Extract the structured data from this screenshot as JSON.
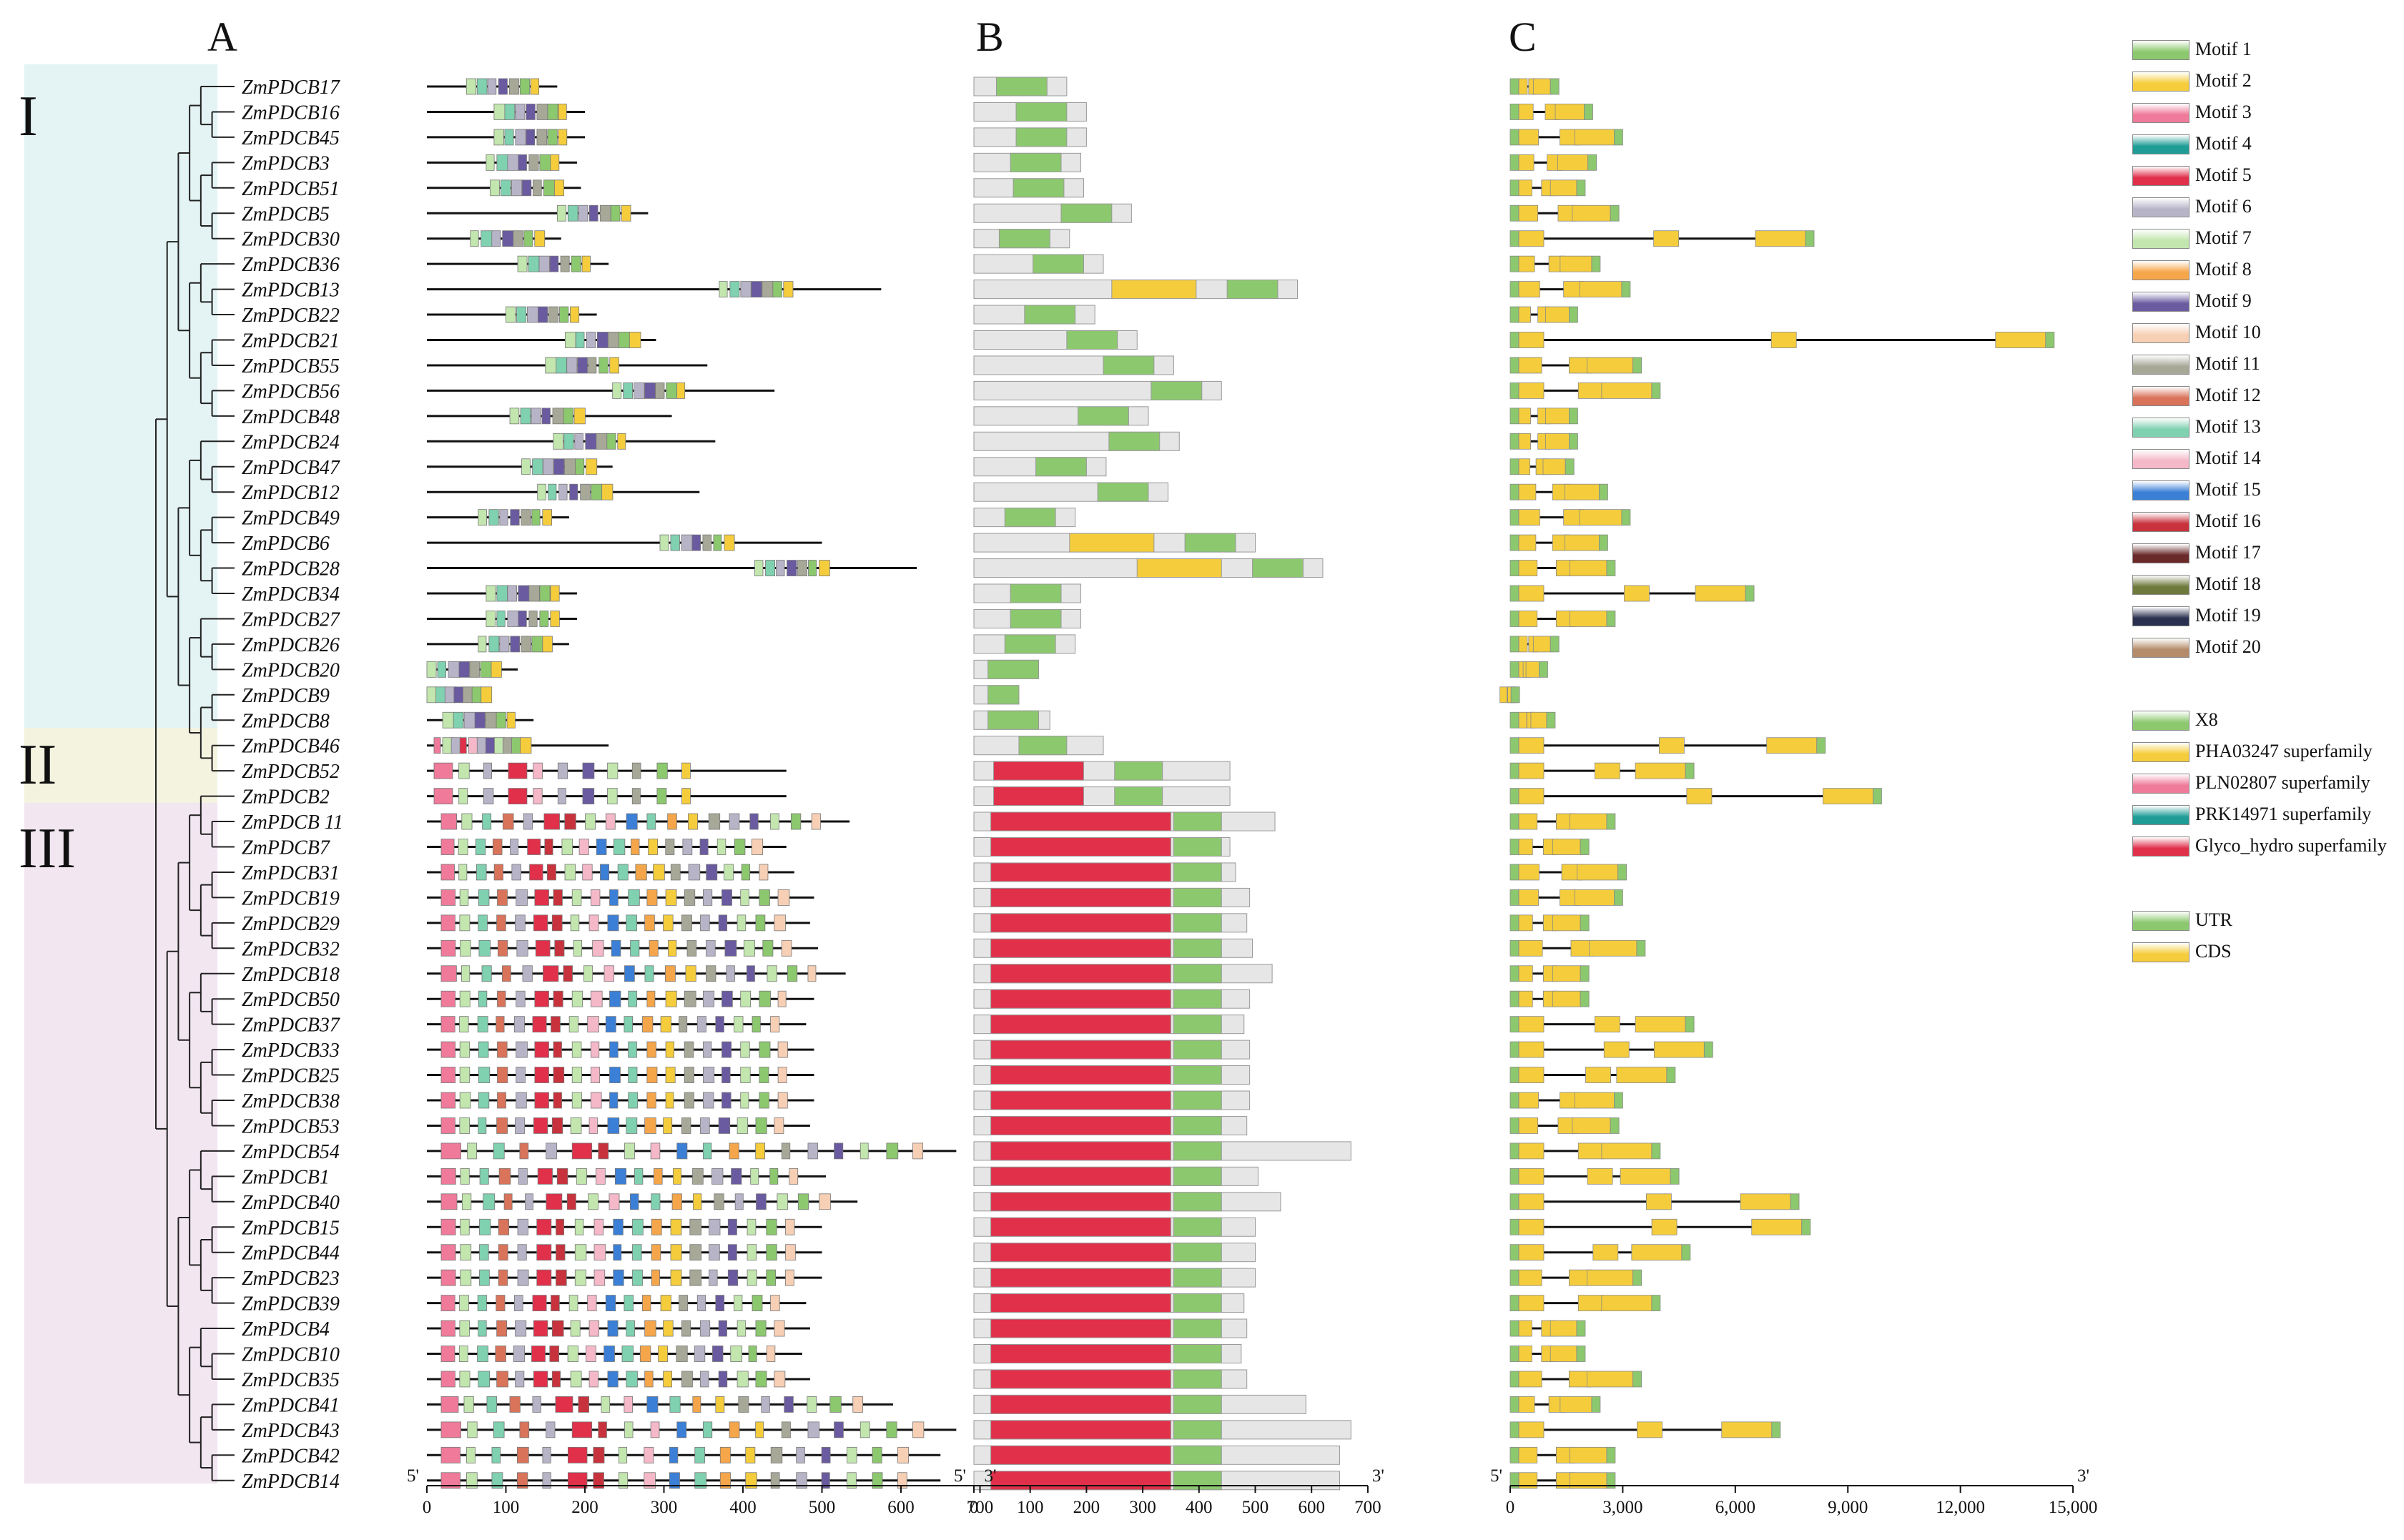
{
  "panels": {
    "a": "A",
    "b": "B",
    "c": "C"
  },
  "clades": [
    {
      "label": "I",
      "color": "#e4f3f3"
    },
    {
      "label": "II",
      "color": "#f3f3e0"
    },
    {
      "label": "III",
      "color": "#f2e6f1"
    }
  ],
  "genes": [
    {
      "name": "ZmPDCB17",
      "clade": 0,
      "len": 165,
      "glen": 1300
    },
    {
      "name": "ZmPDCB16",
      "clade": 0,
      "len": 200,
      "glen": 2200
    },
    {
      "name": "ZmPDCB45",
      "clade": 0,
      "len": 200,
      "glen": 3000
    },
    {
      "name": "ZmPDCB3",
      "clade": 0,
      "len": 190,
      "glen": 2300
    },
    {
      "name": "ZmPDCB51",
      "clade": 0,
      "len": 195,
      "glen": 2000
    },
    {
      "name": "ZmPDCB5",
      "clade": 0,
      "len": 280,
      "glen": 2900
    },
    {
      "name": "ZmPDCB30",
      "clade": 0,
      "len": 170,
      "glen": 8100
    },
    {
      "name": "ZmPDCB36",
      "clade": 0,
      "len": 230,
      "glen": 2400
    },
    {
      "name": "ZmPDCB13",
      "clade": 0,
      "len": 575,
      "glen": 3200
    },
    {
      "name": "ZmPDCB22",
      "clade": 0,
      "len": 215,
      "glen": 1800
    },
    {
      "name": "ZmPDCB21",
      "clade": 0,
      "len": 290,
      "glen": 14500
    },
    {
      "name": "ZmPDCB55",
      "clade": 0,
      "len": 355,
      "glen": 3500
    },
    {
      "name": "ZmPDCB56",
      "clade": 0,
      "len": 440,
      "glen": 4000
    },
    {
      "name": "ZmPDCB48",
      "clade": 0,
      "len": 310,
      "glen": 1800
    },
    {
      "name": "ZmPDCB24",
      "clade": 0,
      "len": 365,
      "glen": 1800
    },
    {
      "name": "ZmPDCB47",
      "clade": 0,
      "len": 235,
      "glen": 1700
    },
    {
      "name": "ZmPDCB12",
      "clade": 0,
      "len": 345,
      "glen": 2600
    },
    {
      "name": "ZmPDCB49",
      "clade": 0,
      "len": 180,
      "glen": 3200
    },
    {
      "name": "ZmPDCB6",
      "clade": 0,
      "len": 500,
      "glen": 2600
    },
    {
      "name": "ZmPDCB28",
      "clade": 0,
      "len": 620,
      "glen": 2800
    },
    {
      "name": "ZmPDCB34",
      "clade": 0,
      "len": 190,
      "glen": 6500
    },
    {
      "name": "ZmPDCB27",
      "clade": 0,
      "len": 190,
      "glen": 2800
    },
    {
      "name": "ZmPDCB26",
      "clade": 0,
      "len": 180,
      "glen": 1300
    },
    {
      "name": "ZmPDCB20",
      "clade": 0,
      "len": 115,
      "glen": 1000
    },
    {
      "name": "ZmPDCB9",
      "clade": 0,
      "len": 80,
      "glen": 250
    },
    {
      "name": "ZmPDCB8",
      "clade": 0,
      "len": 135,
      "glen": 1200
    },
    {
      "name": "ZmPDCB46",
      "clade": 1,
      "len": 230,
      "glen": 8400
    },
    {
      "name": "ZmPDCB52",
      "clade": 1,
      "len": 455,
      "glen": 4900
    },
    {
      "name": "ZmPDCB2",
      "clade": 1,
      "len": 455,
      "glen": 9900
    },
    {
      "name": "ZmPDCB 11",
      "clade": 2,
      "len": 535,
      "glen": 2800
    },
    {
      "name": "ZmPDCB7",
      "clade": 2,
      "len": 455,
      "glen": 2100
    },
    {
      "name": "ZmPDCB31",
      "clade": 2,
      "len": 465,
      "glen": 3100
    },
    {
      "name": "ZmPDCB19",
      "clade": 2,
      "len": 490,
      "glen": 3000
    },
    {
      "name": "ZmPDCB29",
      "clade": 2,
      "len": 485,
      "glen": 2100
    },
    {
      "name": "ZmPDCB32",
      "clade": 2,
      "len": 495,
      "glen": 3600
    },
    {
      "name": "ZmPDCB18",
      "clade": 2,
      "len": 530,
      "glen": 2100
    },
    {
      "name": "ZmPDCB50",
      "clade": 2,
      "len": 490,
      "glen": 2100
    },
    {
      "name": "ZmPDCB37",
      "clade": 2,
      "len": 480,
      "glen": 4900
    },
    {
      "name": "ZmPDCB33",
      "clade": 2,
      "len": 490,
      "glen": 5400
    },
    {
      "name": "ZmPDCB25",
      "clade": 2,
      "len": 490,
      "glen": 4400
    },
    {
      "name": "ZmPDCB38",
      "clade": 2,
      "len": 490,
      "glen": 3000
    },
    {
      "name": "ZmPDCB53",
      "clade": 2,
      "len": 485,
      "glen": 2900
    },
    {
      "name": "ZmPDCB54",
      "clade": 2,
      "len": 670,
      "glen": 4000
    },
    {
      "name": "ZmPDCB1",
      "clade": 2,
      "len": 505,
      "glen": 4500
    },
    {
      "name": "ZmPDCB40",
      "clade": 2,
      "len": 545,
      "glen": 7700
    },
    {
      "name": "ZmPDCB15",
      "clade": 2,
      "len": 500,
      "glen": 8000
    },
    {
      "name": "ZmPDCB44",
      "clade": 2,
      "len": 500,
      "glen": 4800
    },
    {
      "name": "ZmPDCB23",
      "clade": 2,
      "len": 500,
      "glen": 3500
    },
    {
      "name": "ZmPDCB39",
      "clade": 2,
      "len": 480,
      "glen": 4000
    },
    {
      "name": "ZmPDCB4",
      "clade": 2,
      "len": 485,
      "glen": 2000
    },
    {
      "name": "ZmPDCB10",
      "clade": 2,
      "len": 475,
      "glen": 2000
    },
    {
      "name": "ZmPDCB35",
      "clade": 2,
      "len": 485,
      "glen": 3500
    },
    {
      "name": "ZmPDCB41",
      "clade": 2,
      "len": 590,
      "glen": 2400
    },
    {
      "name": "ZmPDCB43",
      "clade": 2,
      "len": 670,
      "glen": 7200
    },
    {
      "name": "ZmPDCB42",
      "clade": 2,
      "len": 650,
      "glen": 2800
    },
    {
      "name": "ZmPDCB14",
      "clade": 2,
      "len": 650,
      "glen": 2800
    }
  ],
  "axes": {
    "a": {
      "ticks": [
        "0",
        "100",
        "200",
        "300",
        "400",
        "500",
        "600",
        "700"
      ],
      "max": 700,
      "left_end": "5'",
      "right_end": "3'"
    },
    "b": {
      "ticks": [
        "0",
        "100",
        "200",
        "300",
        "400",
        "500",
        "600",
        "700"
      ],
      "max": 700,
      "left_end": "5'",
      "right_end": "3'"
    },
    "c": {
      "ticks": [
        "0",
        "3,000",
        "6,000",
        "9,000",
        "12,000",
        "15,000"
      ],
      "max": 15000,
      "left_end": "5'",
      "right_end": "3'"
    }
  },
  "legend": {
    "motifs": [
      {
        "label": "Motif 1",
        "color": "#8cc86e"
      },
      {
        "label": "Motif 2",
        "color": "#f5cd3c"
      },
      {
        "label": "Motif 3",
        "color": "#ef7a9a"
      },
      {
        "label": "Motif 4",
        "color": "#1f9c96"
      },
      {
        "label": "Motif 5",
        "color": "#e0304a"
      },
      {
        "label": "Motif 6",
        "color": "#b8b4c8"
      },
      {
        "label": "Motif 7",
        "color": "#c2e6ae"
      },
      {
        "label": "Motif 8",
        "color": "#f5a64a"
      },
      {
        "label": "Motif 9",
        "color": "#6a5aa0"
      },
      {
        "label": "Motif 10",
        "color": "#f7cfb4"
      },
      {
        "label": "Motif 11",
        "color": "#a8a898"
      },
      {
        "label": "Motif 12",
        "color": "#d9735a"
      },
      {
        "label": "Motif 13",
        "color": "#7fd1b0"
      },
      {
        "label": "Motif 14",
        "color": "#f4b8c8"
      },
      {
        "label": "Motif 15",
        "color": "#3b7fd6"
      },
      {
        "label": "Motif 16",
        "color": "#c8323c"
      },
      {
        "label": "Motif 17",
        "color": "#6a2a2a"
      },
      {
        "label": "Motif 18",
        "color": "#6e7a3c"
      },
      {
        "label": "Motif 19",
        "color": "#2a3050"
      },
      {
        "label": "Motif 20",
        "color": "#b48c6a"
      }
    ],
    "domains": [
      {
        "label": "X8",
        "color": "#8cc86e"
      },
      {
        "label": "PHA03247 superfamily",
        "color": "#f5cd3c"
      },
      {
        "label": "PLN02807 superfamily",
        "color": "#ef7a9a"
      },
      {
        "label": "PRK14971 superfamily",
        "color": "#1f9c96"
      },
      {
        "label": "Glyco_hydro superfamily",
        "color": "#e0304a"
      }
    ],
    "structure": [
      {
        "label": "UTR",
        "color": "#8cc86e"
      },
      {
        "label": "CDS",
        "color": "#f5cd3c"
      }
    ]
  }
}
